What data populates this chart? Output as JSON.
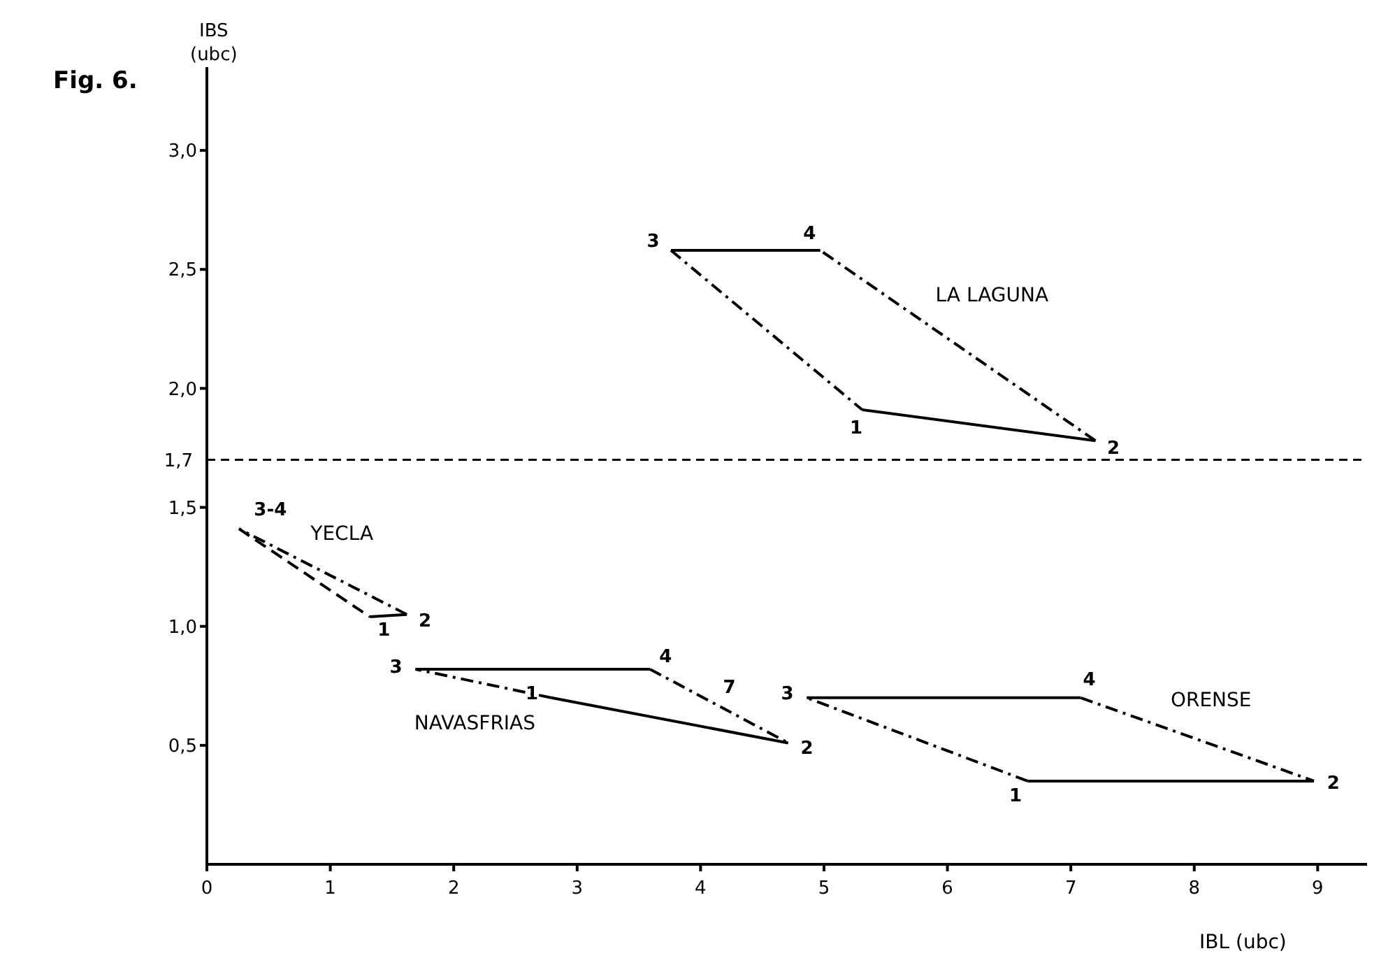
{
  "chart_data": {
    "type": "line",
    "title": "Fig. 6.",
    "xlabel": "IBL (ubc)",
    "ylabel": "IBS\n(ubc)",
    "xlim": [
      0,
      9.4
    ],
    "xticks": [
      0,
      1,
      2,
      3,
      4,
      5,
      6,
      7,
      8,
      9
    ],
    "ylim": [
      0,
      3.35
    ],
    "yticks": [
      {
        "value": 0.5,
        "label": "0,5"
      },
      {
        "value": 1.0,
        "label": "1,0"
      },
      {
        "value": 1.5,
        "label": "1,5"
      },
      {
        "value": 2.0,
        "label": "2,0"
      },
      {
        "value": 2.5,
        "label": "2,5"
      },
      {
        "value": 3.0,
        "label": "3,0"
      }
    ],
    "grid": false,
    "legend": false,
    "marker": "none",
    "ref_lines": [
      {
        "axis": "y",
        "value": 1.7,
        "label": "1,7",
        "line_style": "dashed",
        "color": "#000000"
      }
    ],
    "series": [
      {
        "color": "#000000",
        "line_style": "solid",
        "x": [
          5.31,
          7.2
        ],
        "values": [
          1.91,
          1.78
        ]
      },
      {
        "name": "LA LAGUNA",
        "color": "#000000",
        "line_style": "dotted",
        "x": [
          7.2,
          4.97
        ],
        "values": [
          1.78,
          2.58
        ]
      },
      {
        "color": "#000000",
        "line_style": "solid",
        "x": [
          4.97,
          3.76
        ],
        "values": [
          2.58,
          2.58
        ]
      },
      {
        "color": "#000000",
        "line_style": "dotted",
        "x": [
          3.76,
          5.31
        ],
        "values": [
          2.58,
          1.91
        ]
      },
      {
        "color": "#000000",
        "line_style": "solid",
        "x": [
          1.32,
          1.62
        ],
        "values": [
          1.04,
          1.05
        ]
      },
      {
        "name": "YECLA",
        "color": "#000000",
        "line_style": "dotted",
        "x": [
          1.62,
          0.26
        ],
        "values": [
          1.05,
          1.41
        ]
      },
      {
        "color": "#000000",
        "line_style": "dashed",
        "x": [
          0.26,
          1.32
        ],
        "values": [
          1.41,
          1.04
        ]
      },
      {
        "color": "#000000",
        "line_style": "solid",
        "x": [
          1.69,
          3.59
        ],
        "values": [
          0.82,
          0.82
        ]
      },
      {
        "color": "#000000",
        "line_style": "dotted",
        "x": [
          3.59,
          4.71
        ],
        "values": [
          0.82,
          0.51
        ]
      },
      {
        "color": "#000000",
        "line_style": "solid",
        "x": [
          4.71,
          2.79
        ],
        "values": [
          0.51,
          0.7
        ]
      },
      {
        "name": "NAVASFRIAS",
        "color": "#000000",
        "line_style": "dotted",
        "x": [
          2.79,
          1.69
        ],
        "values": [
          0.7,
          0.82
        ]
      },
      {
        "color": "#000000",
        "line_style": "solid",
        "x": [
          4.86,
          7.08
        ],
        "values": [
          0.7,
          0.7
        ]
      },
      {
        "name": "ORENSE",
        "color": "#000000",
        "line_style": "dotted",
        "x": [
          7.08,
          8.97
        ],
        "values": [
          0.7,
          0.35
        ]
      },
      {
        "color": "#000000",
        "line_style": "solid",
        "x": [
          8.97,
          6.65
        ],
        "values": [
          0.35,
          0.35
        ]
      },
      {
        "color": "#000000",
        "line_style": "dotted",
        "x": [
          6.65,
          4.86
        ],
        "values": [
          0.35,
          0.7
        ]
      }
    ],
    "annotations": [
      {
        "text": "3",
        "x": 3.76,
        "y": 2.58
      },
      {
        "text": "4",
        "x": 4.97,
        "y": 2.58
      },
      {
        "text": "1",
        "x": 5.31,
        "y": 1.91
      },
      {
        "text": "2",
        "x": 7.2,
        "y": 1.78
      },
      {
        "text": "3-4",
        "x": 0.26,
        "y": 1.41
      },
      {
        "text": "1",
        "x": 1.32,
        "y": 1.04
      },
      {
        "text": "2",
        "x": 1.62,
        "y": 1.05
      },
      {
        "text": "3",
        "x": 1.69,
        "y": 0.82
      },
      {
        "text": "4",
        "x": 3.59,
        "y": 0.82
      },
      {
        "text": "7",
        "x": 4.12,
        "y": 0.67
      },
      {
        "text": "1",
        "x": 2.79,
        "y": 0.7
      },
      {
        "text": "2",
        "x": 4.71,
        "y": 0.51
      },
      {
        "text": "3",
        "x": 4.86,
        "y": 0.7
      },
      {
        "text": "4",
        "x": 7.08,
        "y": 0.7
      },
      {
        "text": "1",
        "x": 6.65,
        "y": 0.35
      },
      {
        "text": "2",
        "x": 8.97,
        "y": 0.35
      }
    ]
  }
}
